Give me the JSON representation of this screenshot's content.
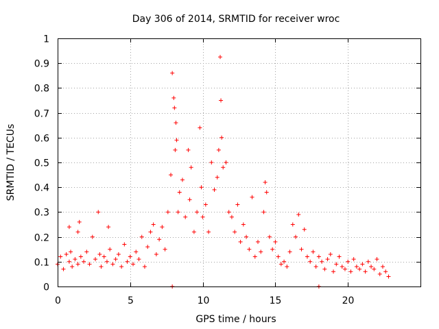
{
  "chart_data": {
    "type": "scatter",
    "title": "Day 306 of 2014, SRMTID for receiver wroc",
    "xlabel": "GPS time / hours",
    "ylabel": "SRMTID / TECUs",
    "xlim": [
      0,
      25
    ],
    "ylim": [
      0,
      1
    ],
    "xticks": [
      0,
      5,
      10,
      15,
      20
    ],
    "yticks": [
      0,
      0.1,
      0.2,
      0.3,
      0.4,
      0.5,
      0.6,
      0.7,
      0.8,
      0.9,
      1
    ],
    "xtick_labels": [
      "0",
      "5",
      "10",
      "15",
      "20"
    ],
    "ytick_labels": [
      "0",
      "0.1",
      "0.2",
      "0.3",
      "0.4",
      "0.5",
      "0.6",
      "0.7",
      "0.8",
      "0.9",
      "1"
    ],
    "grid": true,
    "marker": "+",
    "color": "#ff0000",
    "series": [
      {
        "name": "SRMTID",
        "x": [
          0.0,
          0.2,
          0.4,
          0.6,
          0.8,
          0.8,
          0.9,
          1.0,
          1.2,
          1.4,
          1.4,
          1.5,
          1.6,
          1.8,
          2.0,
          2.2,
          2.4,
          2.6,
          2.8,
          2.9,
          3.0,
          3.2,
          3.4,
          3.5,
          3.6,
          3.8,
          4.0,
          4.2,
          4.4,
          4.6,
          4.8,
          5.0,
          5.2,
          5.4,
          5.6,
          5.8,
          6.0,
          6.2,
          6.4,
          6.6,
          6.8,
          7.0,
          7.2,
          7.4,
          7.6,
          7.8,
          7.9,
          8.0,
          8.05,
          8.1,
          8.15,
          8.2,
          8.3,
          8.4,
          8.6,
          8.8,
          9.0,
          9.1,
          9.2,
          9.4,
          9.6,
          9.8,
          9.9,
          10.0,
          10.2,
          10.4,
          10.6,
          10.8,
          11.0,
          11.1,
          11.2,
          11.25,
          11.3,
          11.4,
          11.6,
          11.8,
          12.0,
          12.2,
          12.4,
          12.6,
          12.8,
          13.0,
          13.2,
          13.4,
          13.6,
          13.8,
          14.0,
          14.2,
          14.3,
          14.4,
          14.6,
          14.8,
          15.0,
          15.2,
          15.4,
          15.6,
          15.8,
          16.0,
          16.2,
          16.4,
          16.6,
          16.8,
          17.0,
          17.2,
          17.4,
          17.6,
          17.8,
          18.0,
          18.2,
          18.4,
          18.6,
          18.8,
          19.0,
          19.2,
          19.4,
          19.6,
          19.8,
          20.0,
          20.2,
          20.4,
          20.6,
          20.8,
          21.0,
          21.2,
          21.4,
          21.6,
          21.8,
          22.0,
          22.2,
          22.4,
          22.6,
          22.8,
          7.9,
          18.0
        ],
        "y": [
          0.09,
          0.12,
          0.07,
          0.13,
          0.24,
          0.1,
          0.14,
          0.08,
          0.11,
          0.22,
          0.09,
          0.26,
          0.12,
          0.1,
          0.14,
          0.09,
          0.2,
          0.11,
          0.3,
          0.13,
          0.08,
          0.12,
          0.1,
          0.24,
          0.15,
          0.09,
          0.11,
          0.13,
          0.08,
          0.17,
          0.1,
          0.12,
          0.09,
          0.14,
          0.11,
          0.2,
          0.08,
          0.16,
          0.22,
          0.25,
          0.13,
          0.19,
          0.24,
          0.15,
          0.3,
          0.45,
          0.86,
          0.76,
          0.72,
          0.55,
          0.66,
          0.59,
          0.3,
          0.38,
          0.43,
          0.28,
          0.55,
          0.35,
          0.48,
          0.22,
          0.3,
          0.64,
          0.4,
          0.28,
          0.33,
          0.22,
          0.5,
          0.39,
          0.44,
          0.55,
          0.925,
          0.75,
          0.6,
          0.48,
          0.5,
          0.3,
          0.28,
          0.22,
          0.33,
          0.18,
          0.25,
          0.2,
          0.15,
          0.36,
          0.12,
          0.18,
          0.14,
          0.3,
          0.42,
          0.38,
          0.2,
          0.15,
          0.18,
          0.12,
          0.09,
          0.1,
          0.08,
          0.14,
          0.25,
          0.2,
          0.29,
          0.15,
          0.23,
          0.12,
          0.1,
          0.14,
          0.08,
          0.12,
          0.1,
          0.07,
          0.11,
          0.13,
          0.06,
          0.09,
          0.12,
          0.08,
          0.07,
          0.1,
          0.06,
          0.11,
          0.08,
          0.07,
          0.09,
          0.06,
          0.1,
          0.08,
          0.07,
          0.11,
          0.05,
          0.08,
          0.06,
          0.04,
          0.0,
          0.0
        ]
      }
    ]
  }
}
